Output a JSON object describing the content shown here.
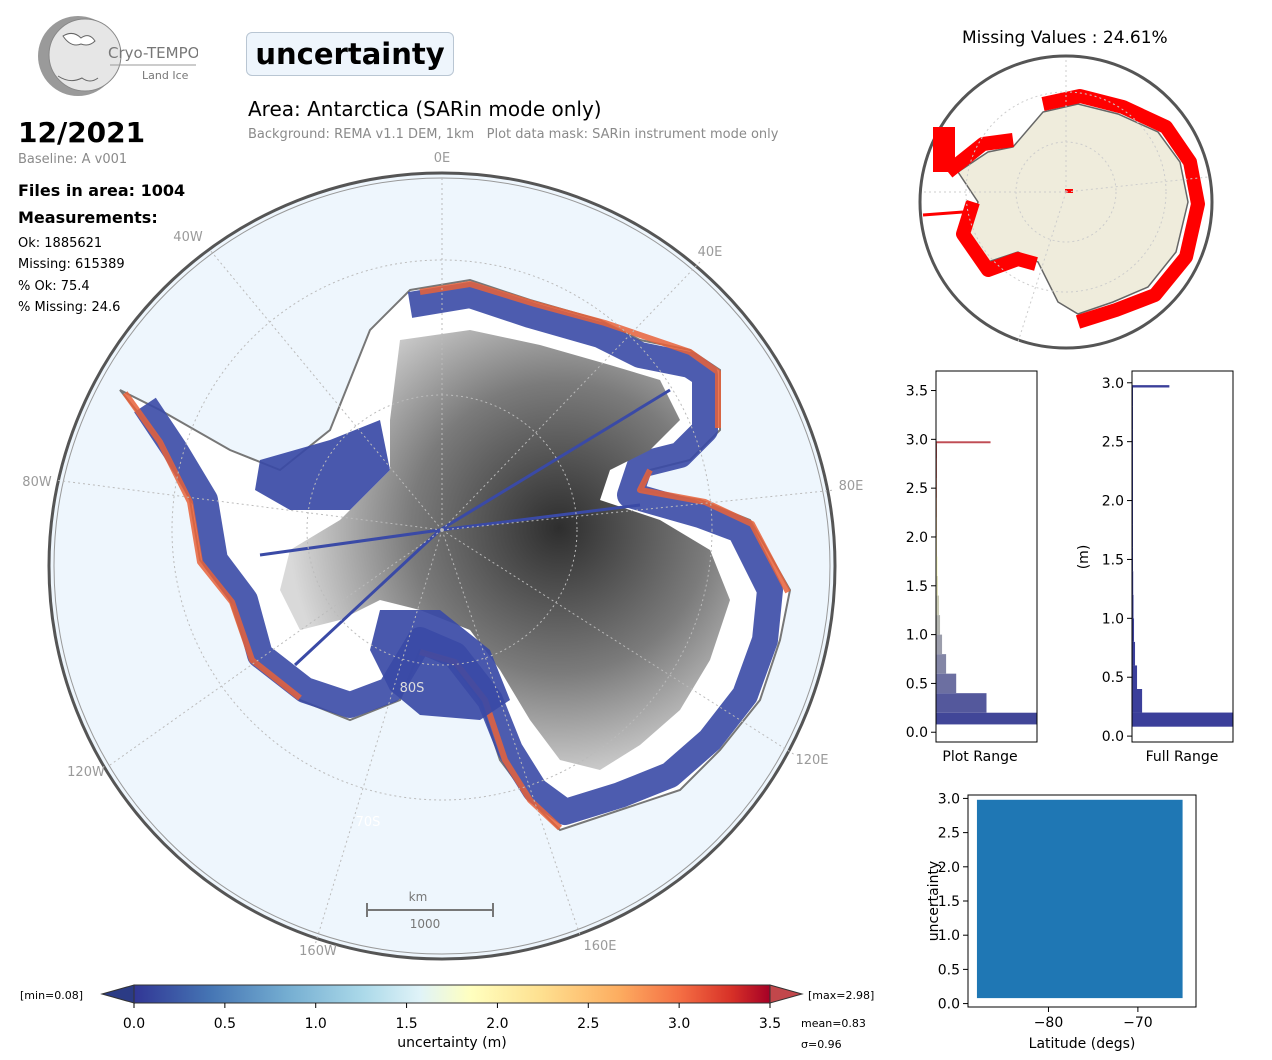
{
  "logo": {
    "name": "Cryo-TEMPO",
    "sub": "Land Ice"
  },
  "variable": "uncertainty",
  "date": "12/2021",
  "baseline": "Baseline: A v001",
  "files_in_area": "Files in area: 1004",
  "measurements_heading": "Measurements:",
  "stats": {
    "ok": "Ok: 1885621",
    "missing": "Missing: 615389",
    "pct_ok": "% Ok: 75.4",
    "pct_missing": "% Missing: 24.6"
  },
  "area_title": "Area: Antarctica (SARin mode only)",
  "background_note": "Background: REMA v1.1 DEM, 1km   Plot data mask: SARin instrument mode only",
  "map": {
    "longitude_labels": [
      "0E",
      "40E",
      "80E",
      "120E",
      "160E",
      "160W",
      "120W",
      "80W",
      "40W"
    ],
    "latitude_labels": [
      "80S",
      "70S"
    ],
    "scale_bar": {
      "unit": "km",
      "value": "1000"
    }
  },
  "missing_values_title": "Missing Values : 24.61%",
  "colorbar": {
    "label": "uncertainty (m)",
    "ticks": [
      "0.0",
      "0.5",
      "1.0",
      "1.5",
      "2.0",
      "2.5",
      "3.0",
      "3.5"
    ],
    "min_label": "[min=0.08]",
    "max_label": "[max=2.98]",
    "mean": "mean=0.83",
    "sigma": "σ=0.96"
  },
  "colors": {
    "ocean": "#eef6fd",
    "low": "#313695",
    "mid": "#ffffbf",
    "high": "#a50026",
    "missing": "#ff0000",
    "land": "#efecdc",
    "scatter": "#1f77b4"
  },
  "chart_data": [
    {
      "type": "bar",
      "title": "",
      "xlabel": "Plot Range",
      "ylabel": "",
      "orientation": "horizontal",
      "ylim": [
        -0.1,
        3.7
      ],
      "yticks": [
        "0.0",
        "0.5",
        "1.0",
        "1.5",
        "2.0",
        "2.5",
        "3.0",
        "3.5"
      ],
      "bins": [
        0.08,
        0.2,
        0.4,
        0.6,
        0.8,
        1.0,
        1.2,
        1.4,
        1.6,
        1.8,
        2.0,
        2.2,
        2.4,
        2.6,
        2.8,
        2.96
      ],
      "values": [
        1.0,
        0.5,
        0.2,
        0.1,
        0.06,
        0.04,
        0.03,
        0.02,
        0.015,
        0.01,
        0.01,
        0.008,
        0.006,
        0.005,
        0.004,
        0.54
      ]
    },
    {
      "type": "bar",
      "title": "",
      "xlabel": "Full Range",
      "ylabel": "(m)",
      "orientation": "horizontal",
      "ylim": [
        -0.05,
        3.1
      ],
      "yticks": [
        "0.0",
        "0.5",
        "1.0",
        "1.5",
        "2.0",
        "2.5",
        "3.0"
      ],
      "bins": [
        0.08,
        0.2,
        0.4,
        0.6,
        0.8,
        1.0,
        1.2,
        1.4,
        1.6,
        1.8,
        2.0,
        2.2,
        2.4,
        2.6,
        2.8,
        2.96
      ],
      "values": [
        1.0,
        0.1,
        0.05,
        0.03,
        0.02,
        0.015,
        0.012,
        0.01,
        0.008,
        0.006,
        0.005,
        0.004,
        0.004,
        0.003,
        0.003,
        0.37
      ]
    },
    {
      "type": "scatter",
      "title": "",
      "xlabel": "Latitude (degs)",
      "ylabel": "uncertainty",
      "xlim": [
        -89,
        -63.5
      ],
      "ylim": [
        -0.05,
        3.05
      ],
      "xticks": [
        "−80",
        "−70"
      ],
      "yticks": [
        "0.0",
        "0.5",
        "1.0",
        "1.5",
        "2.0",
        "2.5",
        "3.0"
      ],
      "extent": {
        "lat_min": -88,
        "lat_max": -65,
        "unc_min": 0.08,
        "unc_max": 2.98
      }
    }
  ]
}
